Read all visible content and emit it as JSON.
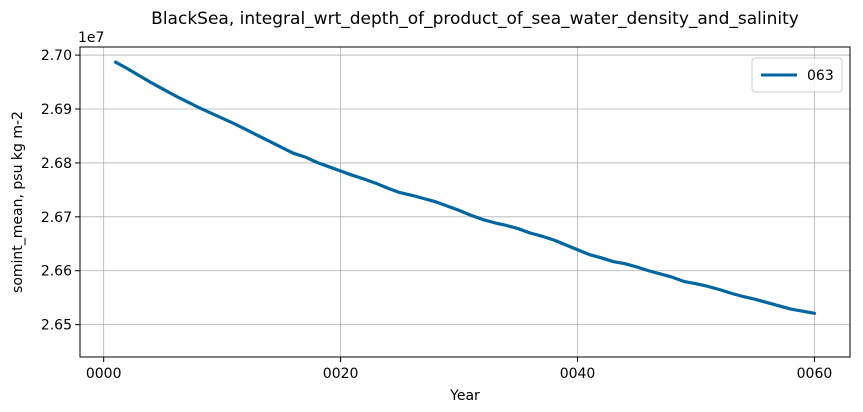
{
  "chart_data": {
    "type": "line",
    "title": "BlackSea, integral_wrt_depth_of_product_of_sea_water_density_and_salinity",
    "xlabel": "Year",
    "ylabel": "somint_mean, psu kg m-2",
    "y_offset_label": "1e7",
    "y_scale": 10000000,
    "xlim": [
      -2,
      63
    ],
    "ylim": [
      2.644,
      2.7015
    ],
    "x_ticks": [
      0,
      20,
      40,
      60
    ],
    "x_tick_labels": [
      "0000",
      "0020",
      "0040",
      "0060"
    ],
    "y_ticks": [
      2.65,
      2.66,
      2.67,
      2.68,
      2.69,
      2.7
    ],
    "y_tick_labels": [
      "2.65",
      "2.66",
      "2.67",
      "2.68",
      "2.69",
      "2.70"
    ],
    "grid": true,
    "legend_position": "top-right",
    "series": [
      {
        "name": "063",
        "color": "#0066a1",
        "x": [
          1,
          2,
          3,
          4,
          5,
          6,
          7,
          8,
          9,
          10,
          11,
          12,
          13,
          14,
          15,
          16,
          17,
          18,
          19,
          20,
          21,
          22,
          23,
          24,
          25,
          26,
          27,
          28,
          29,
          30,
          31,
          32,
          33,
          34,
          35,
          36,
          37,
          38,
          39,
          40,
          41,
          42,
          43,
          44,
          45,
          46,
          47,
          48,
          49,
          50,
          51,
          52,
          53,
          54,
          55,
          56,
          57,
          58,
          59,
          60
        ],
        "values": [
          2.6987,
          2.6975,
          2.6962,
          2.6949,
          2.6937,
          2.6925,
          2.6914,
          2.6903,
          2.6893,
          2.6883,
          2.6873,
          2.6862,
          2.6851,
          2.684,
          2.6829,
          2.6818,
          2.6811,
          2.6801,
          2.6793,
          2.6785,
          2.6777,
          2.677,
          2.6762,
          2.6753,
          2.6745,
          2.674,
          2.6734,
          2.6728,
          2.672,
          2.6712,
          2.6703,
          2.6695,
          2.6689,
          2.6684,
          2.6678,
          2.667,
          2.6664,
          2.6657,
          2.6648,
          2.6639,
          2.663,
          2.6624,
          2.6617,
          2.6613,
          2.6607,
          2.66,
          2.6594,
          2.6588,
          2.658,
          2.6576,
          2.6571,
          2.6565,
          2.6558,
          2.6552,
          2.6547,
          2.6541,
          2.6535,
          2.6529,
          2.6525,
          2.6521
        ]
      }
    ]
  }
}
